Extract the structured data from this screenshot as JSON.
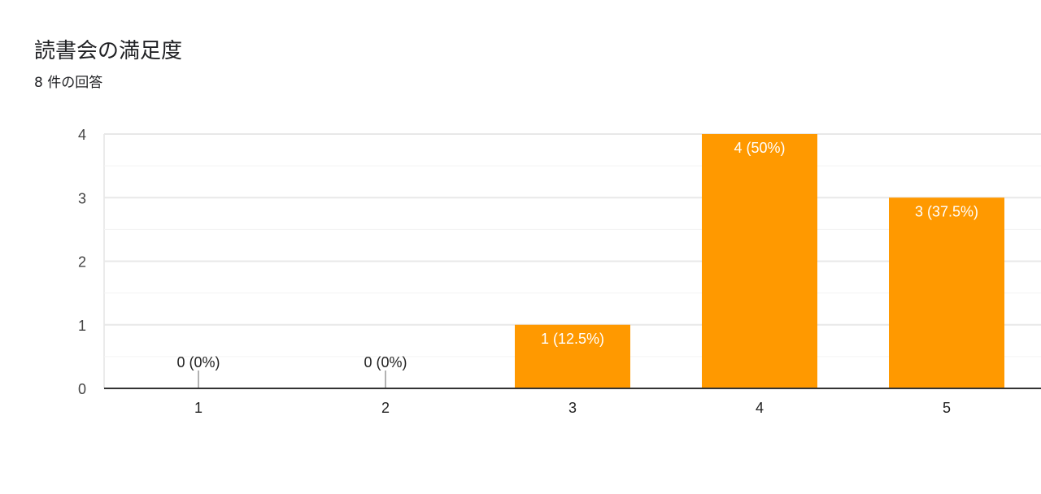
{
  "chart_data": {
    "type": "bar",
    "title": "読書会の満足度",
    "subtitle": "8 件の回答",
    "categories": [
      "1",
      "2",
      "3",
      "4",
      "5"
    ],
    "values": [
      0,
      0,
      1,
      4,
      3
    ],
    "data_labels": [
      "0 (0%)",
      "0 (0%)",
      "1 (12.5%)",
      "4 (50%)",
      "3 (37.5%)"
    ],
    "yticks": [
      "0",
      "1",
      "2",
      "3",
      "4"
    ],
    "ylim": [
      0,
      4
    ],
    "grid": true,
    "bar_color": "#ff9900",
    "xlabel": "",
    "ylabel": ""
  }
}
